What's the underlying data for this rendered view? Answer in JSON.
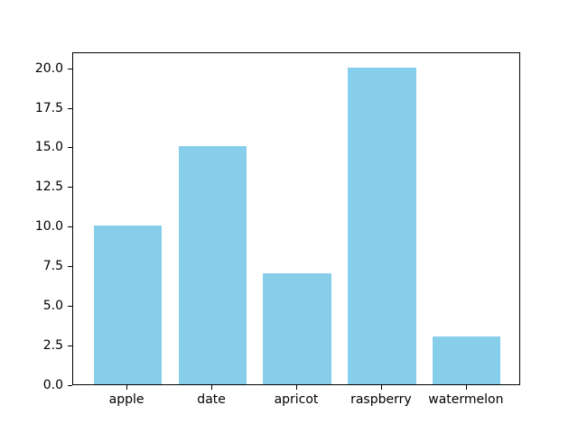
{
  "chart_data": {
    "type": "bar",
    "title": "",
    "xlabel": "",
    "ylabel": "",
    "categories": [
      "apple",
      "date",
      "apricot",
      "raspberry",
      "watermelon"
    ],
    "values": [
      10,
      15,
      7,
      20,
      3
    ],
    "yticks": [
      0.0,
      2.5,
      5.0,
      7.5,
      10.0,
      12.5,
      15.0,
      17.5,
      20.0
    ],
    "ytick_labels": [
      "0.0",
      "2.5",
      "5.0",
      "7.5",
      "10.0",
      "12.5",
      "15.0",
      "17.5",
      "20.0"
    ],
    "ylim": [
      0,
      21
    ],
    "bar_color": "#87CEEB",
    "spine_color": "#000000",
    "background_color": "#FFFFFF",
    "grid": false,
    "legend": null
  }
}
